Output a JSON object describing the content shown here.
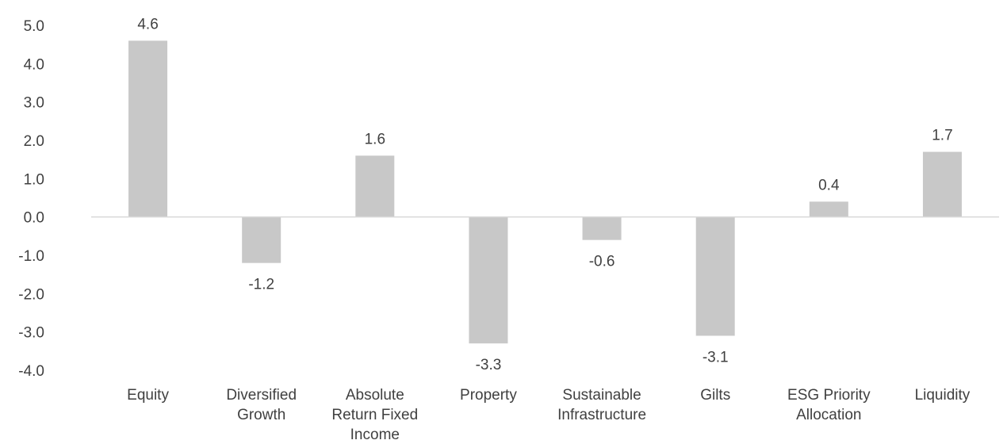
{
  "chart_data": {
    "type": "bar",
    "title": "",
    "xlabel": "",
    "ylabel": "",
    "categories": [
      "Equity",
      "Diversified Growth",
      "Absolute Return Fixed Income",
      "Property",
      "Sustainable Infrastructure",
      "Gilts",
      "ESG Priority Allocation",
      "Liquidity"
    ],
    "category_lines": [
      [
        "Equity"
      ],
      [
        "Diversified",
        "Growth"
      ],
      [
        "Absolute",
        "Return Fixed",
        "Income"
      ],
      [
        "Property"
      ],
      [
        "Sustainable",
        "Infrastructure"
      ],
      [
        "Gilts"
      ],
      [
        "ESG Priority",
        "Allocation"
      ],
      [
        "Liquidity"
      ]
    ],
    "values": [
      4.6,
      -1.2,
      1.6,
      -3.3,
      -0.6,
      -3.1,
      0.4,
      1.7
    ],
    "value_labels": [
      "4.6",
      "-1.2",
      "1.6",
      "-3.3",
      "-0.6",
      "-3.1",
      "0.4",
      "1.7"
    ],
    "ylim": [
      -4.0,
      5.0
    ],
    "yticks": [
      5.0,
      4.0,
      3.0,
      2.0,
      1.0,
      0.0,
      -1.0,
      -2.0,
      -3.0,
      -4.0
    ],
    "ytick_labels": [
      "5.0",
      "4.0",
      "3.0",
      "2.0",
      "1.0",
      "0.0",
      "-1.0",
      "-2.0",
      "-3.0",
      "-4.0"
    ],
    "grid": false,
    "legend": "none",
    "colors": {
      "bar": "#c8c8c8",
      "axis": "#d9d9d9",
      "text": "#404040"
    }
  }
}
